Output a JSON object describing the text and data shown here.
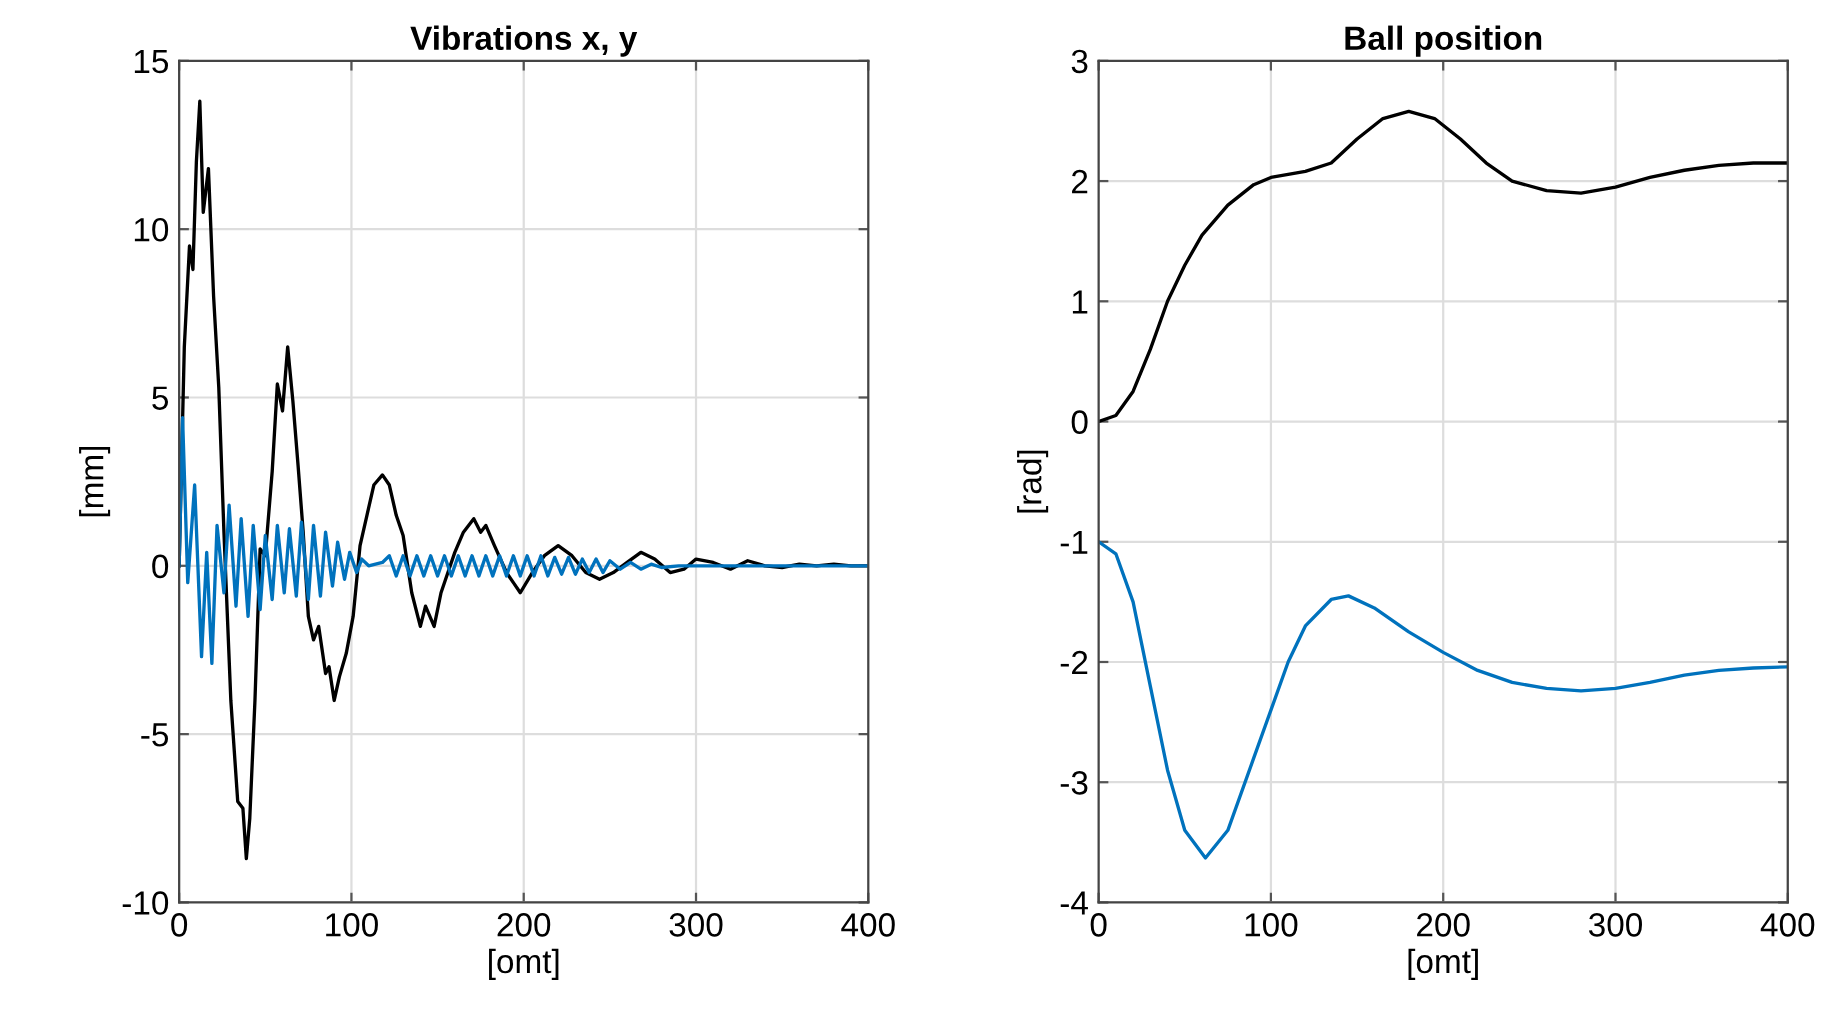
{
  "chart_data": [
    {
      "type": "line",
      "title": "Vibrations x, y",
      "xlabel": "[omt]",
      "ylabel": "[mm]",
      "xlim": [
        0,
        400
      ],
      "ylim": [
        -10,
        15
      ],
      "xticks": [
        0,
        100,
        200,
        300,
        400
      ],
      "yticks": [
        -10,
        -5,
        0,
        5,
        10,
        15
      ],
      "grid": true,
      "series": [
        {
          "color": "#000000",
          "x": [
            0,
            3,
            6,
            8,
            10,
            12,
            14,
            17,
            20,
            23,
            26,
            30,
            34,
            37,
            39,
            41,
            44,
            47,
            50,
            54,
            57,
            60,
            63,
            66,
            69,
            72,
            75,
            78,
            81,
            85,
            87,
            90,
            93,
            97,
            101,
            105,
            109,
            113,
            118,
            122,
            126,
            130,
            135,
            140,
            143,
            148,
            152,
            156,
            160,
            165,
            171,
            175,
            178,
            183,
            190,
            194,
            198,
            205,
            212,
            220,
            228,
            236,
            244,
            252,
            260,
            268,
            276,
            285,
            293,
            300,
            310,
            320,
            330,
            340,
            350,
            360,
            370,
            380,
            390,
            400
          ],
          "values": [
            0,
            6.5,
            9.5,
            8.8,
            12.0,
            13.8,
            10.5,
            11.8,
            8.0,
            5.3,
            1.0,
            -4.0,
            -7.0,
            -7.2,
            -8.7,
            -7.5,
            -4.0,
            0.5,
            0.3,
            2.8,
            5.4,
            4.6,
            6.5,
            4.9,
            3.0,
            1.0,
            -1.5,
            -2.2,
            -1.8,
            -3.2,
            -3.0,
            -4.0,
            -3.3,
            -2.6,
            -1.5,
            0.6,
            1.5,
            2.4,
            2.7,
            2.4,
            1.5,
            0.9,
            -0.8,
            -1.8,
            -1.2,
            -1.8,
            -0.8,
            -0.2,
            0.4,
            1.0,
            1.4,
            1.0,
            1.2,
            0.6,
            -0.2,
            -0.5,
            -0.8,
            -0.2,
            0.3,
            0.6,
            0.3,
            -0.2,
            -0.4,
            -0.2,
            0.1,
            0.4,
            0.2,
            -0.2,
            -0.1,
            0.2,
            0.1,
            -0.1,
            0.15,
            0.0,
            -0.05,
            0.05,
            0.0,
            0.05,
            0.0,
            0.0
          ]
        },
        {
          "color": "#0072bd",
          "x": [
            0,
            2,
            5,
            9,
            13,
            16,
            19,
            22,
            26,
            29,
            33,
            36,
            40,
            43,
            47,
            50,
            54,
            57,
            61,
            64,
            68,
            71,
            75,
            78,
            82,
            85,
            89,
            92,
            96,
            99,
            103,
            106,
            110,
            118,
            122,
            126,
            130,
            134,
            138,
            142,
            146,
            150,
            154,
            158,
            162,
            166,
            170,
            174,
            178,
            182,
            186,
            190,
            194,
            198,
            202,
            206,
            210,
            214,
            218,
            222,
            226,
            230,
            234,
            238,
            242,
            246,
            250,
            256,
            262,
            268,
            274,
            280,
            290,
            300,
            400
          ],
          "values": [
            0,
            4.4,
            -0.5,
            2.4,
            -2.7,
            0.4,
            -2.9,
            1.2,
            -0.8,
            1.8,
            -1.2,
            1.4,
            -1.5,
            1.2,
            -1.3,
            0.9,
            -1.0,
            1.2,
            -0.8,
            1.1,
            -0.9,
            1.3,
            -1.0,
            1.2,
            -0.9,
            1.0,
            -0.6,
            0.7,
            -0.4,
            0.4,
            -0.2,
            0.2,
            0.0,
            0.1,
            0.3,
            -0.3,
            0.3,
            -0.3,
            0.3,
            -0.3,
            0.3,
            -0.3,
            0.3,
            -0.3,
            0.3,
            -0.3,
            0.3,
            -0.3,
            0.3,
            -0.3,
            0.3,
            -0.3,
            0.3,
            -0.3,
            0.3,
            -0.3,
            0.3,
            -0.3,
            0.25,
            -0.25,
            0.25,
            -0.25,
            0.2,
            -0.2,
            0.2,
            -0.2,
            0.15,
            -0.1,
            0.1,
            -0.1,
            0.05,
            -0.05,
            0.0,
            0.0,
            0.0
          ]
        }
      ]
    },
    {
      "type": "line",
      "title": "Ball position",
      "xlabel": "[omt]",
      "ylabel": "[rad]",
      "xlim": [
        0,
        400
      ],
      "ylim": [
        -4,
        3
      ],
      "xticks": [
        0,
        100,
        200,
        300,
        400
      ],
      "yticks": [
        -4,
        -3,
        -2,
        -1,
        0,
        1,
        2,
        3
      ],
      "grid": true,
      "series": [
        {
          "color": "#000000",
          "x": [
            0,
            10,
            20,
            30,
            40,
            50,
            60,
            75,
            90,
            100,
            120,
            135,
            150,
            165,
            180,
            195,
            210,
            225,
            240,
            260,
            280,
            300,
            320,
            340,
            360,
            380,
            400
          ],
          "values": [
            0,
            0.05,
            0.25,
            0.6,
            1.0,
            1.3,
            1.55,
            1.8,
            1.97,
            2.03,
            2.08,
            2.15,
            2.35,
            2.52,
            2.58,
            2.52,
            2.35,
            2.15,
            2.0,
            1.92,
            1.9,
            1.95,
            2.03,
            2.09,
            2.13,
            2.15,
            2.15
          ]
        },
        {
          "color": "#0072bd",
          "x": [
            0,
            10,
            20,
            30,
            40,
            50,
            62,
            75,
            90,
            100,
            110,
            120,
            135,
            145,
            160,
            180,
            200,
            220,
            240,
            260,
            280,
            300,
            320,
            340,
            360,
            380,
            400
          ],
          "values": [
            -1.0,
            -1.1,
            -1.5,
            -2.2,
            -2.9,
            -3.4,
            -3.63,
            -3.4,
            -2.8,
            -2.4,
            -2.0,
            -1.7,
            -1.48,
            -1.45,
            -1.55,
            -1.75,
            -1.92,
            -2.07,
            -2.17,
            -2.22,
            -2.24,
            -2.22,
            -2.17,
            -2.11,
            -2.07,
            -2.05,
            -2.04
          ]
        }
      ]
    }
  ]
}
